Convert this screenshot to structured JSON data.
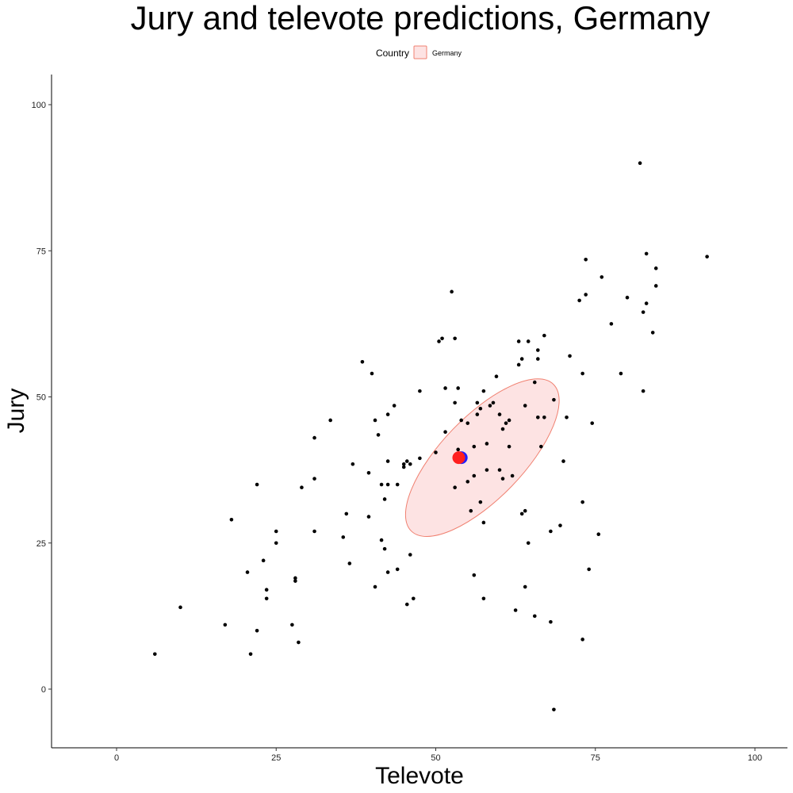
{
  "chart_data": {
    "type": "scatter",
    "title": "Jury and televote predictions, Germany",
    "xlabel": "Televote",
    "ylabel": "Jury",
    "xlim": [
      -10,
      105
    ],
    "ylim": [
      -10,
      105
    ],
    "x_ticks": [
      "0",
      "25",
      "50",
      "75",
      "100"
    ],
    "y_ticks": [
      "0",
      "25",
      "50",
      "75",
      "100"
    ],
    "grid": false,
    "legend": {
      "title": "Country",
      "position": "top",
      "entries": [
        "Germany"
      ]
    },
    "colors": {
      "points": "#000000",
      "ellipse_fill": "#fde3e3",
      "ellipse_stroke": "#f08070",
      "mean_red": "#ff2020",
      "mean_blue": "#2020ff"
    },
    "ellipse": {
      "cx": 57.3,
      "cy": 39.6,
      "rx": 16.0,
      "ry": 7.0,
      "angle_deg": 46
    },
    "mean_markers": [
      {
        "x": 54.0,
        "y": 39.6,
        "color": "blue"
      },
      {
        "x": 53.6,
        "y": 39.6,
        "color": "red"
      }
    ],
    "points": [
      [
        6,
        6
      ],
      [
        10,
        14
      ],
      [
        17,
        11
      ],
      [
        21,
        6
      ],
      [
        22,
        10
      ],
      [
        18,
        29
      ],
      [
        20.5,
        20
      ],
      [
        23,
        22
      ],
      [
        22,
        35
      ],
      [
        23.5,
        17
      ],
      [
        23.5,
        15.5
      ],
      [
        25,
        27
      ],
      [
        25,
        25
      ],
      [
        27.5,
        11
      ],
      [
        28,
        19
      ],
      [
        28,
        18.5
      ],
      [
        28.5,
        8
      ],
      [
        29,
        34.5
      ],
      [
        31,
        27
      ],
      [
        31,
        36
      ],
      [
        31,
        43
      ],
      [
        33.5,
        46
      ],
      [
        35.5,
        26
      ],
      [
        36,
        30
      ],
      [
        36.5,
        21.5
      ],
      [
        37,
        38.5
      ],
      [
        38.5,
        56
      ],
      [
        39.5,
        37
      ],
      [
        39.5,
        29.5
      ],
      [
        40,
        54
      ],
      [
        40.5,
        46
      ],
      [
        40.5,
        17.5
      ],
      [
        41,
        43.5
      ],
      [
        41.5,
        35
      ],
      [
        41.5,
        25.5
      ],
      [
        42,
        32.5
      ],
      [
        42,
        24
      ],
      [
        42.5,
        39
      ],
      [
        42.5,
        35
      ],
      [
        42.5,
        20
      ],
      [
        42.5,
        47
      ],
      [
        43.5,
        48.5
      ],
      [
        44,
        35
      ],
      [
        44,
        20.5
      ],
      [
        45,
        38.5
      ],
      [
        45,
        38
      ],
      [
        45.5,
        14.5
      ],
      [
        45.5,
        39
      ],
      [
        46,
        23
      ],
      [
        46,
        38.5
      ],
      [
        46.5,
        15.5
      ],
      [
        47.5,
        39.5
      ],
      [
        47.5,
        51
      ],
      [
        50,
        40.5
      ],
      [
        50.5,
        59.5
      ],
      [
        51,
        60
      ],
      [
        51.5,
        44
      ],
      [
        51.5,
        51.5
      ],
      [
        52.5,
        68
      ],
      [
        53,
        60
      ],
      [
        53,
        49
      ],
      [
        53,
        34.5
      ],
      [
        53.5,
        51.5
      ],
      [
        53.5,
        41
      ],
      [
        54,
        46
      ],
      [
        55,
        45.5
      ],
      [
        55,
        35.5
      ],
      [
        55.5,
        30.5
      ],
      [
        56,
        41.5
      ],
      [
        56,
        36.5
      ],
      [
        56,
        19.5
      ],
      [
        56.5,
        47
      ],
      [
        56.5,
        49
      ],
      [
        57,
        48
      ],
      [
        57,
        32
      ],
      [
        57.5,
        51
      ],
      [
        57.5,
        28.5
      ],
      [
        57.5,
        15.5
      ],
      [
        58,
        42
      ],
      [
        58,
        37.5
      ],
      [
        58.5,
        48.5
      ],
      [
        59,
        49
      ],
      [
        59.5,
        53.5
      ],
      [
        60,
        47
      ],
      [
        60,
        37.5
      ],
      [
        60.5,
        44.5
      ],
      [
        60.5,
        36
      ],
      [
        61,
        45.5
      ],
      [
        61.5,
        46
      ],
      [
        61.5,
        41.5
      ],
      [
        62,
        36.5
      ],
      [
        62.5,
        13.5
      ],
      [
        63,
        59.5
      ],
      [
        63,
        55.5
      ],
      [
        63.5,
        56.5
      ],
      [
        63.5,
        30
      ],
      [
        64,
        48.5
      ],
      [
        64,
        30.5
      ],
      [
        64,
        17.5
      ],
      [
        64.5,
        59.5
      ],
      [
        64.5,
        25
      ],
      [
        65.5,
        52.5
      ],
      [
        65.5,
        12.5
      ],
      [
        66,
        58
      ],
      [
        66,
        56.5
      ],
      [
        66,
        46.5
      ],
      [
        66.5,
        41.5
      ],
      [
        67,
        46.5
      ],
      [
        67,
        60.5
      ],
      [
        68,
        27
      ],
      [
        68,
        11.5
      ],
      [
        68.5,
        49.5
      ],
      [
        68.5,
        -3.5
      ],
      [
        69.5,
        28
      ],
      [
        70,
        39
      ],
      [
        70.5,
        46.5
      ],
      [
        71,
        57
      ],
      [
        72.5,
        66.5
      ],
      [
        73,
        54
      ],
      [
        73,
        32
      ],
      [
        73,
        8.5
      ],
      [
        73.5,
        67.5
      ],
      [
        73.5,
        73.5
      ],
      [
        74,
        20.5
      ],
      [
        74.5,
        45.5
      ],
      [
        75.5,
        26.5
      ],
      [
        76,
        70.5
      ],
      [
        77.5,
        62.5
      ],
      [
        79,
        54
      ],
      [
        80,
        67
      ],
      [
        82,
        90
      ],
      [
        82.5,
        51
      ],
      [
        82.5,
        64.5
      ],
      [
        83,
        66
      ],
      [
        83,
        74.5
      ],
      [
        84,
        61
      ],
      [
        84.5,
        72
      ],
      [
        84.5,
        69
      ],
      [
        92.5,
        74
      ]
    ]
  }
}
